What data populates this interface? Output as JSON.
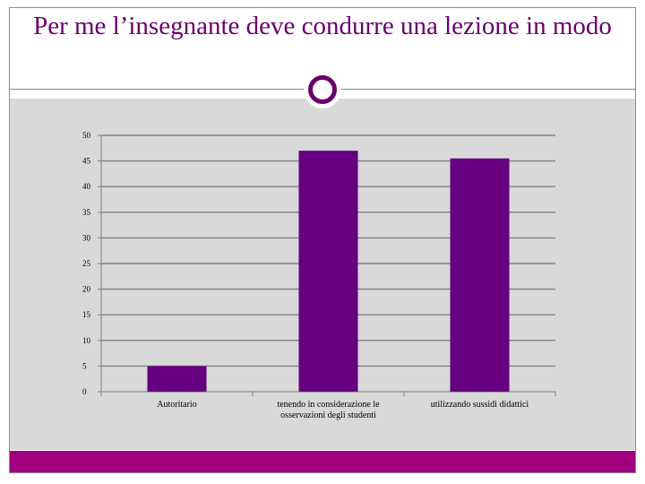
{
  "title": "Per me l’insegnante deve condurre una lezione in modo",
  "colors": {
    "accent": "#6a006a",
    "bar": "#660080",
    "plot_background": "#d9d9d9",
    "footer": "#a0007e"
  },
  "chart_data": {
    "type": "bar",
    "title": "",
    "xlabel": "",
    "ylabel": "",
    "ylim": [
      0,
      50
    ],
    "yticks": [
      0,
      5,
      10,
      15,
      20,
      25,
      30,
      35,
      40,
      45,
      50
    ],
    "categories": [
      [
        "Autoritario"
      ],
      [
        "tenendo in considerazione le",
        "osservazioni degli studenti"
      ],
      [
        "utilizzando sussidi didattici"
      ]
    ],
    "values": [
      5,
      47,
      45.5
    ],
    "grid": true,
    "legend": "none"
  }
}
